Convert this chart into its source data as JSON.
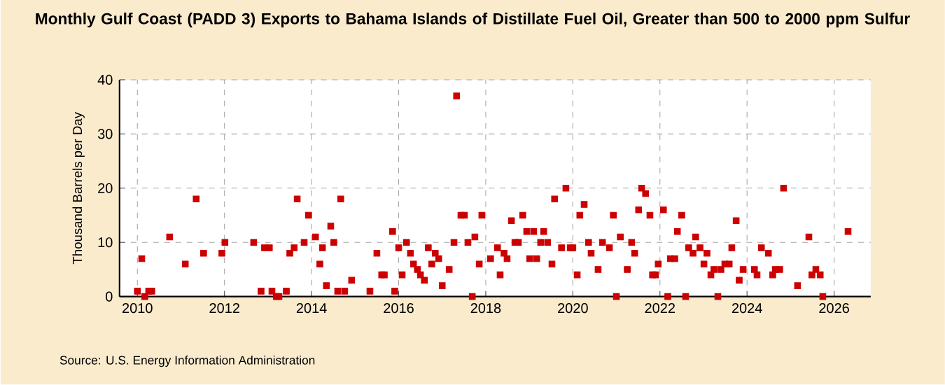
{
  "chart_data": {
    "type": "scatter",
    "title": "Monthly Gulf Coast (PADD 3) Exports to Bahama Islands of Distillate Fuel Oil, Greater than 500 to 2000 ppm Sulfur",
    "ylabel": "Thousand Barrels per Day",
    "annotations": [
      "Source: U.S. Energy Information Administration"
    ],
    "x": [
      2010.0,
      2010.1,
      2010.17,
      2010.26,
      2010.33,
      2010.74,
      2011.1,
      2011.35,
      2011.52,
      2011.94,
      2012.01,
      2012.67,
      2012.84,
      2012.92,
      2013.03,
      2013.09,
      2013.19,
      2013.25,
      2013.42,
      2013.5,
      2013.6,
      2013.67,
      2013.83,
      2013.93,
      2014.09,
      2014.19,
      2014.25,
      2014.34,
      2014.44,
      2014.51,
      2014.6,
      2014.67,
      2014.76,
      2014.92,
      2015.34,
      2015.5,
      2015.61,
      2015.67,
      2015.86,
      2015.91,
      2016.0,
      2016.08,
      2016.18,
      2016.27,
      2016.34,
      2016.43,
      2016.5,
      2016.59,
      2016.68,
      2016.76,
      2016.84,
      2016.92,
      2017.0,
      2017.16,
      2017.27,
      2017.33,
      2017.43,
      2017.51,
      2017.59,
      2017.69,
      2017.75,
      2017.85,
      2017.91,
      2018.11,
      2018.27,
      2018.33,
      2018.42,
      2018.49,
      2018.59,
      2018.67,
      2018.75,
      2018.85,
      2018.94,
      2019.01,
      2019.1,
      2019.17,
      2019.26,
      2019.33,
      2019.42,
      2019.52,
      2019.58,
      2019.74,
      2019.84,
      2019.94,
      2020.0,
      2020.1,
      2020.16,
      2020.26,
      2020.36,
      2020.42,
      2020.58,
      2020.68,
      2020.84,
      2020.93,
      2021.0,
      2021.09,
      2021.25,
      2021.35,
      2021.42,
      2021.51,
      2021.58,
      2021.67,
      2021.77,
      2021.83,
      2021.9,
      2021.96,
      2022.08,
      2022.18,
      2022.24,
      2022.34,
      2022.4,
      2022.5,
      2022.59,
      2022.66,
      2022.76,
      2022.82,
      2022.92,
      2023.01,
      2023.08,
      2023.17,
      2023.24,
      2023.33,
      2023.4,
      2023.49,
      2023.59,
      2023.65,
      2023.75,
      2023.82,
      2023.91,
      2024.17,
      2024.23,
      2024.33,
      2024.49,
      2024.59,
      2024.65,
      2024.75,
      2024.84,
      2025.16,
      2025.42,
      2025.49,
      2025.58,
      2025.68,
      2025.74,
      2026.32
    ],
    "series": [
      {
        "color": "#cc0000",
        "values": [
          1,
          7,
          0,
          1,
          1,
          11,
          6,
          18,
          8,
          8,
          10,
          10,
          1,
          9,
          9,
          1,
          0,
          0,
          1,
          8,
          9,
          18,
          10,
          15,
          11,
          6,
          9,
          2,
          13,
          10,
          1,
          18,
          1,
          3,
          1,
          8,
          4,
          4,
          12,
          1,
          9,
          4,
          10,
          8,
          6,
          5,
          4,
          3,
          9,
          6,
          8,
          7,
          2,
          5,
          10,
          37,
          15,
          15,
          10,
          0,
          11,
          6,
          15,
          7,
          9,
          4,
          8,
          7,
          14,
          10,
          10,
          15,
          12,
          7,
          12,
          7,
          10,
          12,
          10,
          6,
          18,
          9,
          20,
          9,
          9,
          4,
          15,
          17,
          10,
          8,
          5,
          10,
          9,
          15,
          0,
          11,
          5,
          10,
          8,
          16,
          20,
          19,
          15,
          4,
          4,
          6,
          16,
          0,
          7,
          7,
          12,
          15,
          0,
          9,
          8,
          11,
          9,
          6,
          8,
          4,
          5,
          0,
          5,
          6,
          6,
          9,
          14,
          3,
          5,
          5,
          4,
          9,
          8,
          4,
          5,
          5,
          20,
          2,
          11,
          4,
          5,
          4,
          0,
          12
        ]
      }
    ],
    "xlim": [
      2009.59,
      2026.84
    ],
    "ylim": [
      0,
      40
    ],
    "xticks": [
      2010,
      2012,
      2014,
      2016,
      2018,
      2020,
      2022,
      2024,
      2026
    ],
    "yticks": [
      0,
      10,
      20,
      30,
      40
    ],
    "grid": true,
    "marker": "square"
  }
}
